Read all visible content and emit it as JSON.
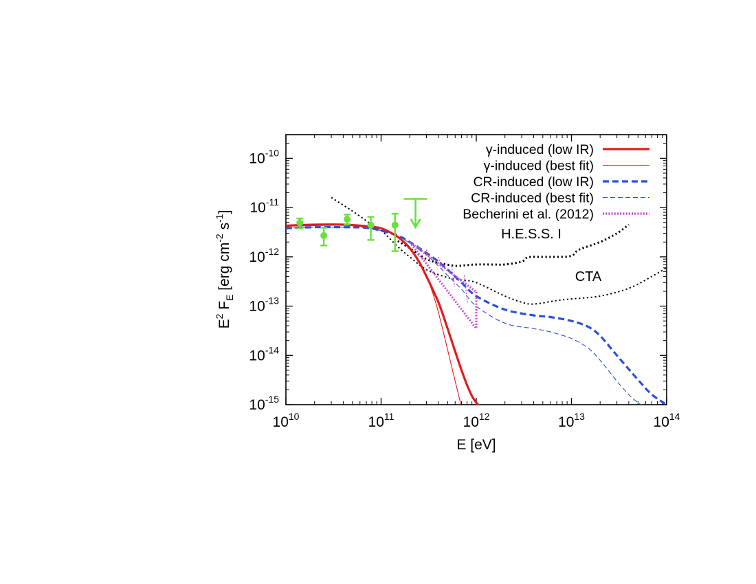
{
  "chart_data": {
    "type": "line",
    "xlabel": "E [eV]",
    "ylabel": "E<sup>2</sup> F<sub>E</sub> [erg cm<sup>-2</sup> s<sup>-1</sup>]",
    "x_scale": "log",
    "y_scale": "log",
    "xlim": [
      10000000000.0,
      100000000000000.0
    ],
    "ylim": [
      1e-15,
      3e-10
    ],
    "x_ticks": [
      {
        "value": 10000000000.0,
        "base": "10",
        "exp": "10"
      },
      {
        "value": 100000000000.0,
        "base": "10",
        "exp": "11"
      },
      {
        "value": 1000000000000.0,
        "base": "10",
        "exp": "12"
      },
      {
        "value": 10000000000000.0,
        "base": "10",
        "exp": "13"
      },
      {
        "value": 100000000000000.0,
        "base": "10",
        "exp": "14"
      }
    ],
    "y_ticks": [
      {
        "value": 1e-15,
        "base": "10",
        "exp": "-15"
      },
      {
        "value": 1e-14,
        "base": "10",
        "exp": "-14"
      },
      {
        "value": 1e-13,
        "base": "10",
        "exp": "-13"
      },
      {
        "value": 1e-12,
        "base": "10",
        "exp": "-12"
      },
      {
        "value": 1e-11,
        "base": "10",
        "exp": "-11"
      },
      {
        "value": 1e-10,
        "base": "10",
        "exp": "-10"
      }
    ],
    "legend_position": "top-right",
    "series": [
      {
        "name": "γ-induced (low IR)",
        "color": "#e41a1c",
        "style": "solid",
        "width": 3.2,
        "legend": true,
        "x": [
          10000000000.0,
          20000000000.0,
          40000000000.0,
          70000000000.0,
          100000000000.0,
          130000000000.0,
          160000000000.0,
          200000000000.0,
          250000000000.0,
          300000000000.0,
          400000000000.0,
          500000000000.0,
          600000000000.0,
          700000000000.0,
          800000000000.0,
          900000000000.0,
          1000000000000.0,
          1100000000000.0
        ],
        "y": [
          4.3e-12,
          4.5e-12,
          4.5e-12,
          4.2e-12,
          3.8e-12,
          3e-12,
          2.3e-12,
          1.5e-12,
          8e-13,
          4e-13,
          1.2e-13,
          3.5e-14,
          1.2e-14,
          5e-15,
          2.5e-15,
          1.5e-15,
          1.1e-15,
          9e-16
        ]
      },
      {
        "name": "γ-induced (best fit)",
        "color": "#e41a1c",
        "style": "solid",
        "width": 1.1,
        "legend": true,
        "x": [
          10000000000.0,
          20000000000.0,
          40000000000.0,
          70000000000.0,
          100000000000.0,
          130000000000.0,
          160000000000.0,
          200000000000.0,
          250000000000.0,
          300000000000.0,
          350000000000.0,
          400000000000.0,
          500000000000.0,
          600000000000.0,
          700000000000.0
        ],
        "y": [
          4.2e-12,
          4.3e-12,
          4.4e-12,
          4.1e-12,
          3.7e-12,
          3e-12,
          2.3e-12,
          1.5e-12,
          8e-13,
          4e-13,
          1.8e-13,
          7.5e-14,
          1.3e-14,
          3e-15,
          9e-16
        ]
      },
      {
        "name": "CR-induced (low IR)",
        "color": "#2b4fdc",
        "style": "dashed-thick",
        "width": 3.2,
        "legend": true,
        "x": [
          10000000000.0,
          20000000000.0,
          40000000000.0,
          70000000000.0,
          100000000000.0,
          150000000000.0,
          200000000000.0,
          300000000000.0,
          400000000000.0,
          500000000000.0,
          700000000000.0,
          1000000000000.0,
          2000000000000.0,
          4000000000000.0,
          6000000000000.0,
          10000000000000.0,
          15000000000000.0,
          20000000000000.0,
          30000000000000.0,
          50000000000000.0,
          70000000000000.0,
          100000000000000.0
        ],
        "y": [
          3.8e-12,
          4e-12,
          4e-12,
          3.9e-12,
          3.4e-12,
          2.7e-12,
          2e-12,
          1.2e-12,
          8e-13,
          5.5e-13,
          3e-13,
          1.6e-13,
          8.5e-14,
          6.5e-14,
          6e-14,
          5e-14,
          3.8e-14,
          2.5e-14,
          1e-14,
          3.2e-15,
          1.6e-15,
          1e-15
        ]
      },
      {
        "name": "CR-induced (best fit)",
        "color": "#2b4fdc",
        "style": "dashed-thin",
        "width": 1.1,
        "legend": true,
        "x": [
          10000000000.0,
          20000000000.0,
          40000000000.0,
          70000000000.0,
          100000000000.0,
          150000000000.0,
          200000000000.0,
          300000000000.0,
          400000000000.0,
          500000000000.0,
          700000000000.0,
          1000000000000.0,
          2000000000000.0,
          4000000000000.0,
          6000000000000.0,
          10000000000000.0,
          15000000000000.0,
          20000000000000.0,
          30000000000000.0,
          40000000000000.0,
          50000000000000.0,
          60000000000000.0
        ],
        "y": [
          3.8e-12,
          4e-12,
          4e-12,
          3.9e-12,
          3.4e-12,
          2.6e-12,
          1.9e-12,
          1.1e-12,
          6.5e-13,
          4.2e-13,
          2.2e-13,
          1e-13,
          4.5e-14,
          3.5e-14,
          3e-14,
          2.2e-14,
          1.4e-14,
          8e-15,
          3e-15,
          1.6e-15,
          1.1e-15,
          9e-16
        ]
      },
      {
        "name": "H.E.S.S. I",
        "color": "#000000",
        "style": "dotted",
        "width": 3.0,
        "legend": false,
        "label": true,
        "x": [
          150000000000.0,
          200000000000.0,
          300000000000.0,
          400000000000.0,
          600000000000.0,
          800000000000.0,
          1000000000000.0,
          1500000000000.0,
          2000000000000.0,
          3000000000000.0,
          3500000000000.0,
          5000000000000.0,
          7000000000000.0,
          10000000000000.0,
          12000000000000.0,
          20000000000000.0,
          30000000000000.0,
          40000000000000.0
        ],
        "y": [
          2.1e-12,
          1.5e-12,
          9e-13,
          7.6e-13,
          6.6e-13,
          6.8e-13,
          7e-13,
          7e-13,
          7e-13,
          8e-13,
          9.8e-13,
          1e-12,
          1e-12,
          1.05e-12,
          1.4e-12,
          2e-12,
          3e-12,
          4.5e-12
        ]
      },
      {
        "name": "CTA",
        "color": "#000000",
        "style": "dotted",
        "width": 2.0,
        "legend": false,
        "label": true,
        "x": [
          30000000000.0,
          50000000000.0,
          80000000000.0,
          100000000000.0,
          150000000000.0,
          200000000000.0,
          300000000000.0,
          500000000000.0,
          700000000000.0,
          1000000000000.0,
          2000000000000.0,
          3000000000000.0,
          4000000000000.0,
          7000000000000.0,
          10000000000000.0,
          20000000000000.0,
          40000000000000.0,
          70000000000000.0,
          100000000000000.0
        ],
        "y": [
          1.6e-11,
          8.5e-12,
          4.5e-12,
          3.5e-12,
          1.6e-12,
          1e-12,
          5.5e-13,
          3.8e-13,
          3.4e-13,
          3e-13,
          1.6e-13,
          1.2e-13,
          1.1e-13,
          1.3e-13,
          1.4e-13,
          1.6e-13,
          2.3e-13,
          4e-13,
          6e-13
        ]
      }
    ],
    "becherini_band": {
      "name": "Becherini et al. (2012)",
      "color": "#c84fd8",
      "x_start": 200000000000.0,
      "x_end": 1000000000000.0,
      "y_start": 2e-12,
      "y_upper_end": 1.95e-13,
      "y_lower_end": 3.5e-14
    },
    "data_points": {
      "color": "#66e23a",
      "points": [
        {
          "x": 14000000000.0,
          "y": 4.9e-12,
          "ylo": 3.8e-12,
          "yhi": 6e-12
        },
        {
          "x": 25000000000.0,
          "y": 2.7e-12,
          "ylo": 1.7e-12,
          "yhi": 3.9e-12
        },
        {
          "x": 44000000000.0,
          "y": 5.8e-12,
          "ylo": 4.6e-12,
          "yhi": 7.2e-12
        },
        {
          "x": 78000000000.0,
          "y": 4.4e-12,
          "ylo": 2.2e-12,
          "yhi": 6.5e-12
        },
        {
          "x": 140000000000.0,
          "y": 4.4e-12,
          "ylo": 1.3e-12,
          "yhi": 7.5e-12
        }
      ],
      "upper_limit": {
        "x": 230000000000.0,
        "y": 1.5e-11,
        "arrow_to": 4e-12
      }
    },
    "labels": {
      "hess": "H.E.S.S. I",
      "cta": "CTA"
    }
  }
}
